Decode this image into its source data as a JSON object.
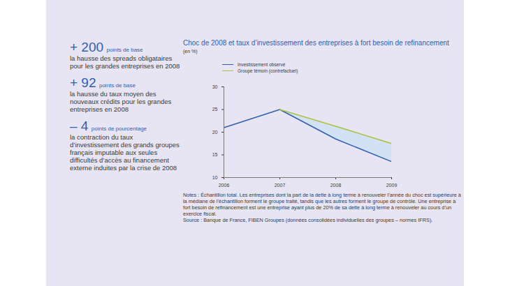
{
  "chart_data": {
    "type": "line",
    "title": "Choc de 2008 et taux d’investissement des entreprises à fort besoin de refinancement",
    "subtitle": "(en %)",
    "x": [
      2006,
      2007,
      2008,
      2009
    ],
    "series": [
      {
        "name": "Investissement observé",
        "color": "#2f5fae",
        "values": [
          21,
          25,
          18.5,
          13.5
        ]
      },
      {
        "name": "Groupe témoin (contrefactuel)",
        "color": "#a8c43c",
        "values": [
          null,
          25,
          21.3,
          17.5
        ]
      }
    ],
    "xlim": [
      2006,
      2009
    ],
    "xticks": [
      2006,
      2007,
      2008,
      2009
    ],
    "ylim": [
      10,
      30
    ],
    "yticks": [
      10,
      15,
      20,
      25,
      30
    ],
    "grid": false,
    "legend": "top",
    "annotations": [
      {
        "value": "+ 200",
        "unit": "points de base",
        "text": "la hausse des spreads obligataires pour les grandes entreprises en 2008"
      },
      {
        "value": "+ 92",
        "unit": "points de base",
        "text": "la hausse du taux moyen des nouveaux crédits pour les grandes entreprises en 2008"
      },
      {
        "value": "– 4",
        "unit": "points de pourcentage",
        "text": "la contraction du taux d’investissement des grands groupes français imputable aux seules difficultés d’accès au financement externe induites par la crise de 2008"
      }
    ],
    "notes": "Notes : Échantillon total. Les entreprises dont la part de la dette à long terme à renouveler l’année du choc est supérieure à la médiane de l’échantillon forment le groupe traité, tandis que les autres forment le groupe de contrôle. Une entreprise à fort besoin de refinancement est une entreprise ayant plus de 20% de sa dette à long terme à renouveler au cours d’un exercice fiscal.",
    "source": "Source : Banque de France, FIBEN Groupes (données consolidées individuelles des groupes – normes IFRS)."
  }
}
